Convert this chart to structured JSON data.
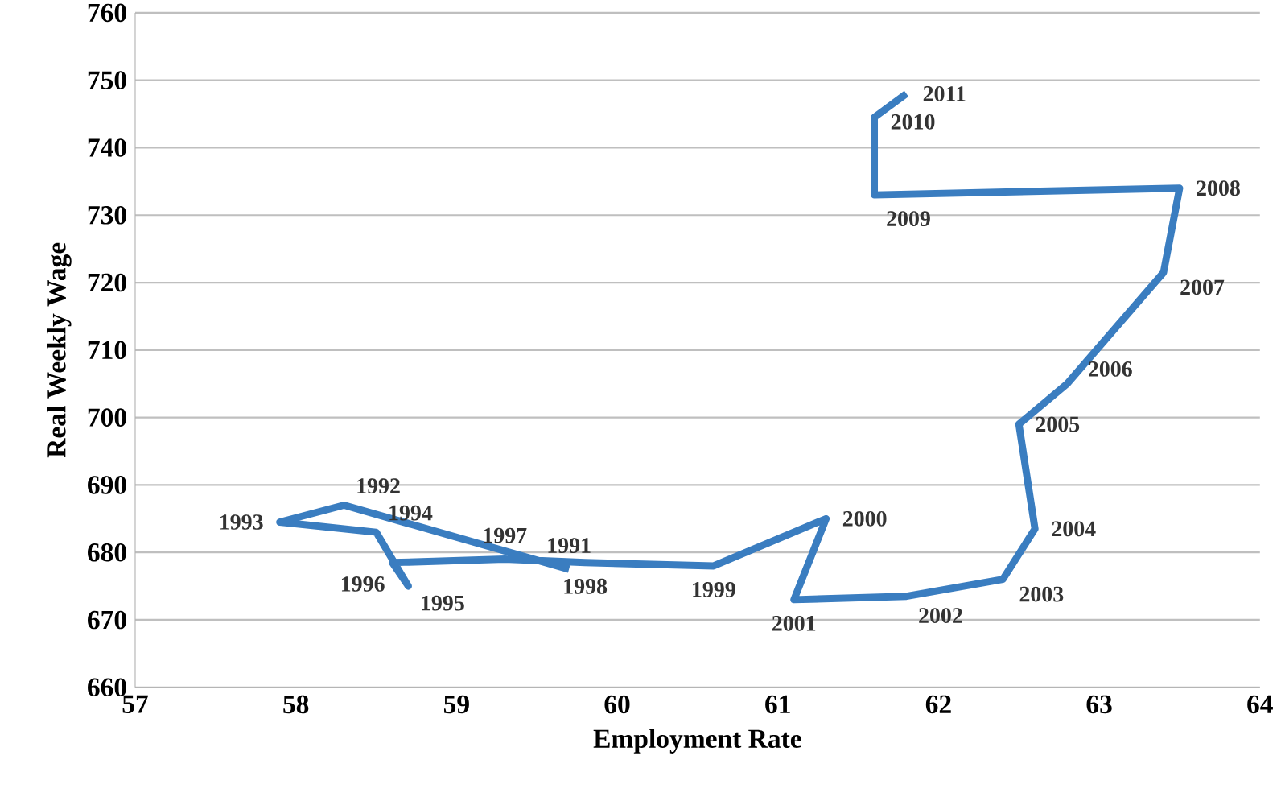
{
  "chart_data": {
    "type": "line",
    "xlabel": "Employment Rate",
    "ylabel": "Real Weekly Wage",
    "x": [
      59.7,
      58.3,
      57.9,
      58.5,
      58.7,
      58.6,
      59.3,
      59.8,
      60.6,
      61.3,
      61.1,
      61.8,
      62.4,
      62.6,
      62.5,
      62.8,
      63.4,
      63.5,
      61.6,
      61.6,
      61.8
    ],
    "series": [
      {
        "color": "#3a7dc0",
        "values": [
          677.5,
          687,
          684.5,
          683,
          675,
          678.5,
          679,
          678.5,
          678,
          685,
          673,
          673.5,
          676,
          683.5,
          699,
          705,
          721.5,
          734,
          733,
          744.5,
          748
        ]
      }
    ],
    "xlim": [
      57,
      64
    ],
    "ylim": [
      660,
      760
    ],
    "xticks": [
      57,
      58,
      59,
      60,
      61,
      62,
      63,
      64
    ],
    "yticks": [
      660,
      670,
      680,
      690,
      700,
      710,
      720,
      730,
      740,
      750,
      760
    ],
    "grid": "y",
    "marker": "none",
    "line_style": "solid",
    "annotations": [
      {
        "text": "1991",
        "x": 59.7,
        "y": 677.5
      },
      {
        "text": "1992",
        "x": 58.3,
        "y": 687
      },
      {
        "text": "1993",
        "x": 57.9,
        "y": 684.5
      },
      {
        "text": "1994",
        "x": 58.5,
        "y": 683
      },
      {
        "text": "1995",
        "x": 58.7,
        "y": 675
      },
      {
        "text": "1996",
        "x": 58.6,
        "y": 678.5
      },
      {
        "text": "1997",
        "x": 59.3,
        "y": 679
      },
      {
        "text": "1998",
        "x": 59.8,
        "y": 678.5
      },
      {
        "text": "1999",
        "x": 60.6,
        "y": 678
      },
      {
        "text": "2000",
        "x": 61.3,
        "y": 685
      },
      {
        "text": "2001",
        "x": 61.1,
        "y": 673
      },
      {
        "text": "2002",
        "x": 61.8,
        "y": 673.5
      },
      {
        "text": "2003",
        "x": 62.4,
        "y": 676
      },
      {
        "text": "2004",
        "x": 62.6,
        "y": 683.5
      },
      {
        "text": "2005",
        "x": 62.5,
        "y": 699
      },
      {
        "text": "2006",
        "x": 62.8,
        "y": 705
      },
      {
        "text": "2007",
        "x": 63.4,
        "y": 721.5
      },
      {
        "text": "2008",
        "x": 63.5,
        "y": 734
      },
      {
        "text": "2009",
        "x": 61.6,
        "y": 733
      },
      {
        "text": "2010",
        "x": 61.6,
        "y": 744.5
      },
      {
        "text": "2011",
        "x": 61.8,
        "y": 748
      }
    ]
  }
}
